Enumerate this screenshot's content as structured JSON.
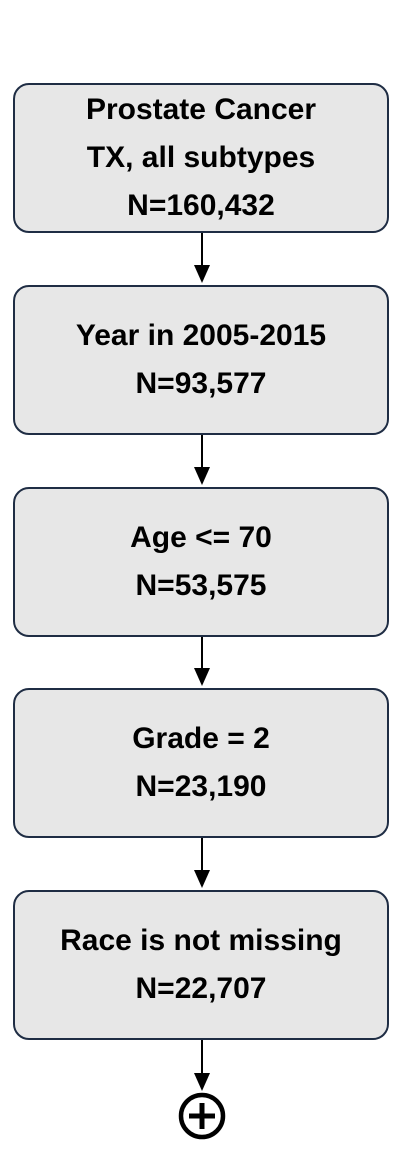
{
  "flowchart": {
    "steps": [
      {
        "lines": [
          "Prostate Cancer",
          "TX, all subtypes",
          "N=160,432"
        ]
      },
      {
        "lines": [
          "Year in 2005-2015",
          "N=93,577"
        ]
      },
      {
        "lines": [
          "Age <= 70",
          "N=53,575"
        ]
      },
      {
        "lines": [
          "Grade = 2",
          "N=23,190"
        ]
      },
      {
        "lines": [
          "Race is not missing",
          "N=22,707"
        ]
      }
    ],
    "terminal_symbol": "circled-plus-icon",
    "colors": {
      "box_fill": "#e7e7e7",
      "box_border": "#1f2d44",
      "arrow": "#000000",
      "text": "#000000"
    }
  }
}
